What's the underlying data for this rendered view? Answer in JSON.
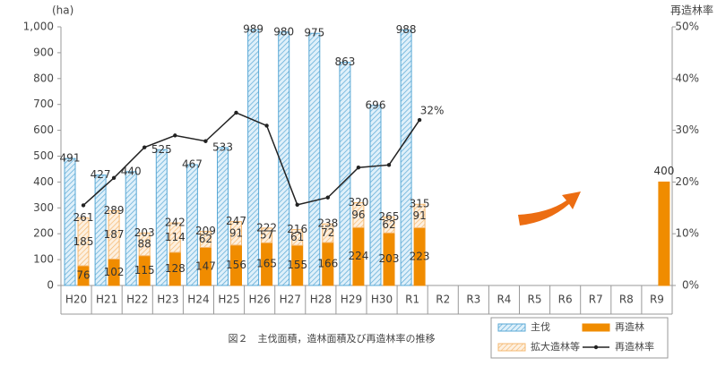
{
  "chart_data": {
    "type": "bar",
    "caption": "図２　主伐面積，造林面積及び再造林率の推移",
    "y_label": "(ha)",
    "y2_label": "再造林率",
    "categories": [
      "H20",
      "H21",
      "H22",
      "H23",
      "H24",
      "H25",
      "H26",
      "H27",
      "H28",
      "H29",
      "H30",
      "R1",
      "R2",
      "R3",
      "R4",
      "R5",
      "R6",
      "R7",
      "R8",
      "R9"
    ],
    "ylim": [
      0,
      1000
    ],
    "yticks": [
      0,
      100,
      200,
      300,
      400,
      500,
      600,
      700,
      800,
      900,
      {
        "value": 1000,
        "label": "1,000"
      }
    ],
    "y2lim": [
      0,
      50
    ],
    "y2ticks": [
      {
        "value": 0,
        "label": "0%"
      },
      {
        "value": 10,
        "label": "10%"
      },
      {
        "value": 20,
        "label": "20%"
      },
      {
        "value": 30,
        "label": "30%"
      },
      {
        "value": 40,
        "label": "40%"
      },
      {
        "value": 50,
        "label": "50%"
      }
    ],
    "series": [
      {
        "name": "主伐",
        "color": "#5aa9d6",
        "values": [
          491,
          427,
          440,
          525,
          467,
          533,
          989,
          980,
          975,
          863,
          696,
          988,
          null,
          null,
          null,
          null,
          null,
          null,
          null,
          null
        ]
      },
      {
        "name": "再造林",
        "color": "#f08c00",
        "values": [
          76,
          102,
          115,
          128,
          147,
          156,
          165,
          155,
          166,
          224,
          203,
          223,
          null,
          null,
          null,
          null,
          null,
          null,
          null,
          400
        ]
      },
      {
        "name": "拡大造林等",
        "color": "#f5b870",
        "values": [
          185,
          187,
          88,
          114,
          62,
          91,
          57,
          61,
          72,
          96,
          62,
          91,
          null,
          null,
          null,
          null,
          null,
          null,
          null,
          null
        ]
      },
      {
        "name": "再造林率",
        "color": "#222222",
        "axis": "y2",
        "values": [
          15.5,
          20.8,
          26.7,
          29,
          27.9,
          33.4,
          30.9,
          15.6,
          17,
          22.8,
          23.3,
          32,
          null,
          null,
          null,
          null,
          null,
          null,
          null,
          null
        ],
        "value_labels": [
          null,
          null,
          null,
          null,
          null,
          null,
          null,
          null,
          null,
          null,
          null,
          "32%",
          null,
          null,
          null,
          null,
          null,
          null,
          null,
          null
        ]
      }
    ],
    "stack_totals": [
      261,
      289,
      203,
      242,
      209,
      247,
      222,
      216,
      238,
      320,
      265,
      315,
      null,
      null,
      null,
      null,
      null,
      null,
      null,
      null
    ]
  }
}
